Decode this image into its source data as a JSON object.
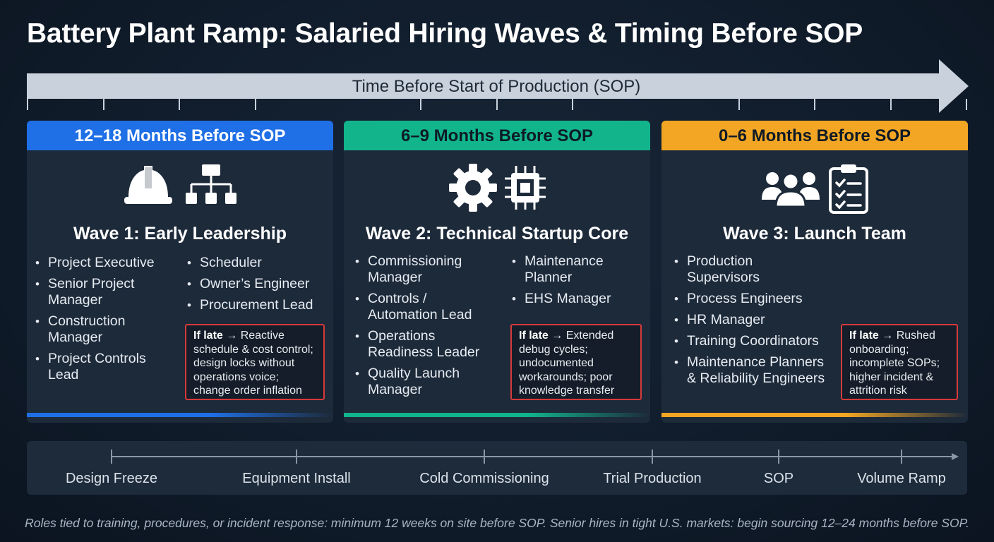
{
  "title": "Battery Plant Ramp: Salaried Hiring Waves & Timing Before SOP",
  "timeline_label": "Time Before Start of Production (SOP)",
  "colors": {
    "wave1": "#1f6fe6",
    "wave2": "#12b48c",
    "wave3": "#f2a623",
    "late_border": "#d63a3a"
  },
  "waves": [
    {
      "header": "12–18 Months Before SOP",
      "title": "Wave 1: Early Leadership",
      "icons": [
        "hard-hat-icon",
        "org-chart-icon"
      ],
      "roles_col1": [
        "Project Executive",
        "Senior Project Manager",
        "Construction Manager",
        "Project Controls Lead"
      ],
      "roles_col2": [
        "Scheduler",
        "Owner’s Engineer",
        "Procurement Lead"
      ],
      "late_label": "If late",
      "late_text": "Reactive schedule & cost control; design locks without operations voice; change order inflation"
    },
    {
      "header": "6–9 Months Before SOP",
      "title": "Wave 2: Technical Startup Core",
      "icons": [
        "gear-icon",
        "chip-icon"
      ],
      "roles_col1": [
        "Commissioning Manager",
        "Controls / Automation Lead",
        "Operations Readiness Leader",
        "Quality Launch Manager"
      ],
      "roles_col2": [
        "Maintenance Planner",
        "EHS Manager"
      ],
      "late_label": "If late",
      "late_text": "Extended debug cycles; undocumented workarounds; poor knowledge transfer"
    },
    {
      "header": "0–6 Months Before SOP",
      "title": "Wave 3: Launch Team",
      "icons": [
        "team-icon",
        "clipboard-checklist-icon"
      ],
      "roles_col1": [
        "Production Supervisors",
        "Process Engineers",
        "HR Manager",
        "Training Coordinators",
        "Maintenance Planners & Reliability Engineers"
      ],
      "roles_col2": [],
      "late_label": "If late",
      "late_text": "Rushed onboarding; incomplete SOPs; higher incident & attrition risk"
    }
  ],
  "milestones": [
    "Design Freeze",
    "Equipment Install",
    "Cold Commissioning",
    "Trial Production",
    "SOP",
    "Volume Ramp"
  ],
  "footnote": "Roles tied to training, procedures, or incident response: minimum 12 weeks on site before SOP. Senior hires in tight U.S. markets: begin sourcing 12–24 months before SOP."
}
